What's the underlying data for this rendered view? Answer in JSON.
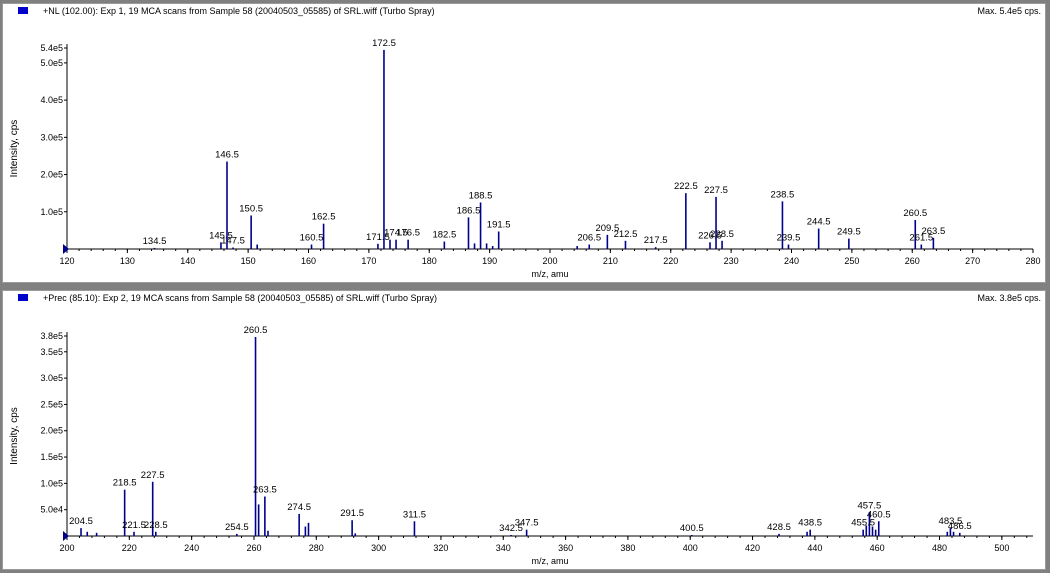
{
  "panels": [
    {
      "header": {
        "title": "+NL (102.00): Exp 1, 19 MCA scans from Sample 58 (20040503_05585) of SRL.wiff (Turbo Spray)",
        "max": "Max. 5.4e5 cps."
      }
    },
    {
      "header": {
        "title": "+Prec (85.10): Exp 2, 19 MCA scans from Sample 58 (20040503_05585) of SRL.wiff (Turbo Spray)",
        "max": "Max. 3.8e5 cps."
      }
    }
  ],
  "colors": {
    "peaks": "#00008b",
    "marker": "#00008b",
    "swatch": "#0000cc"
  },
  "chart_data": [
    {
      "type": "bar",
      "xlabel": "m/z, amu",
      "ylabel": "Intensity, cps",
      "xlim": [
        120,
        280
      ],
      "ylim": [
        0,
        540000
      ],
      "xticks": [
        120,
        130,
        140,
        150,
        160,
        170,
        180,
        190,
        200,
        210,
        220,
        230,
        240,
        250,
        260,
        270,
        280
      ],
      "yticks": [
        {
          "value": 100000,
          "label": "1.0e5"
        },
        {
          "value": 200000,
          "label": "2.0e5"
        },
        {
          "value": 300000,
          "label": "3.0e5"
        },
        {
          "value": 400000,
          "label": "4.0e5"
        },
        {
          "value": 500000,
          "label": "5.0e5"
        },
        {
          "value": 540000,
          "label": "5.4e5"
        }
      ],
      "peaks": [
        {
          "x": 134.5,
          "y": 3000,
          "label": "134.5"
        },
        {
          "x": 145.5,
          "y": 18000,
          "label": "145.5"
        },
        {
          "x": 146.5,
          "y": 235000,
          "label": "146.5"
        },
        {
          "x": 147.5,
          "y": 4000,
          "label": "147.5"
        },
        {
          "x": 150.5,
          "y": 90000,
          "label": "150.5"
        },
        {
          "x": 151.5,
          "y": 12000
        },
        {
          "x": 160.5,
          "y": 12000,
          "label": "160.5"
        },
        {
          "x": 162.5,
          "y": 68000,
          "label": "162.5"
        },
        {
          "x": 171.5,
          "y": 14000,
          "label": "171.5"
        },
        {
          "x": 172.5,
          "y": 535000,
          "label": "172.5"
        },
        {
          "x": 173.5,
          "y": 25000
        },
        {
          "x": 174.5,
          "y": 25000,
          "label": "174.5"
        },
        {
          "x": 176.5,
          "y": 25000,
          "label": "176.5"
        },
        {
          "x": 182.5,
          "y": 20000,
          "label": "182.5"
        },
        {
          "x": 186.5,
          "y": 85000,
          "label": "186.5"
        },
        {
          "x": 187.5,
          "y": 15000
        },
        {
          "x": 188.5,
          "y": 125000,
          "label": "188.5"
        },
        {
          "x": 189.5,
          "y": 15000
        },
        {
          "x": 190.5,
          "y": 8000
        },
        {
          "x": 191.5,
          "y": 47000,
          "label": "191.5"
        },
        {
          "x": 204.5,
          "y": 8000
        },
        {
          "x": 206.5,
          "y": 12000,
          "label": "206.5"
        },
        {
          "x": 209.5,
          "y": 38000,
          "label": "209.5"
        },
        {
          "x": 212.5,
          "y": 22000,
          "label": "212.5"
        },
        {
          "x": 217.5,
          "y": 5000,
          "label": "217.5"
        },
        {
          "x": 222.5,
          "y": 150000,
          "label": "222.5"
        },
        {
          "x": 226.5,
          "y": 18000,
          "label": "226.5"
        },
        {
          "x": 227.5,
          "y": 140000,
          "label": "227.5"
        },
        {
          "x": 228.5,
          "y": 22000,
          "label": "228.5"
        },
        {
          "x": 238.5,
          "y": 128000,
          "label": "238.5"
        },
        {
          "x": 239.5,
          "y": 12000,
          "label": "239.5"
        },
        {
          "x": 244.5,
          "y": 55000,
          "label": "244.5"
        },
        {
          "x": 249.5,
          "y": 28000,
          "label": "249.5"
        },
        {
          "x": 260.5,
          "y": 78000,
          "label": "260.5"
        },
        {
          "x": 261.5,
          "y": 12000,
          "label": "261.5"
        },
        {
          "x": 263.5,
          "y": 30000,
          "label": "263.5"
        }
      ]
    },
    {
      "type": "bar",
      "xlabel": "m/z, amu",
      "ylabel": "Intensity, cps",
      "xlim": [
        200,
        510
      ],
      "ylim": [
        0,
        380000
      ],
      "xticks": [
        200,
        220,
        240,
        260,
        280,
        300,
        320,
        340,
        360,
        380,
        400,
        420,
        440,
        460,
        480,
        500
      ],
      "yticks": [
        {
          "value": 50000,
          "label": "5.0e4"
        },
        {
          "value": 100000,
          "label": "1.0e5"
        },
        {
          "value": 150000,
          "label": "1.5e5"
        },
        {
          "value": 200000,
          "label": "2.0e5"
        },
        {
          "value": 250000,
          "label": "2.5e5"
        },
        {
          "value": 300000,
          "label": "3.0e5"
        },
        {
          "value": 350000,
          "label": "3.5e5"
        },
        {
          "value": 380000,
          "label": "3.8e5"
        }
      ],
      "peaks": [
        {
          "x": 204.5,
          "y": 15000,
          "label": "204.5"
        },
        {
          "x": 206.5,
          "y": 8000
        },
        {
          "x": 209.5,
          "y": 6000
        },
        {
          "x": 218.5,
          "y": 88000,
          "label": "218.5"
        },
        {
          "x": 221.5,
          "y": 8000,
          "label": "221.5"
        },
        {
          "x": 227.5,
          "y": 103000,
          "label": "227.5"
        },
        {
          "x": 228.5,
          "y": 8000,
          "label": "228.5"
        },
        {
          "x": 254.5,
          "y": 4000,
          "label": "254.5"
        },
        {
          "x": 260.5,
          "y": 378000,
          "label": "260.5"
        },
        {
          "x": 261.5,
          "y": 60000
        },
        {
          "x": 263.5,
          "y": 75000,
          "label": "263.5"
        },
        {
          "x": 264.5,
          "y": 10000
        },
        {
          "x": 274.5,
          "y": 42000,
          "label": "274.5"
        },
        {
          "x": 276.5,
          "y": 18000
        },
        {
          "x": 277.5,
          "y": 25000
        },
        {
          "x": 291.5,
          "y": 30000,
          "label": "291.5"
        },
        {
          "x": 292.5,
          "y": 5000
        },
        {
          "x": 311.5,
          "y": 28000,
          "label": "311.5"
        },
        {
          "x": 342.5,
          "y": 2000,
          "label": "342.5"
        },
        {
          "x": 347.5,
          "y": 12000,
          "label": "347.5"
        },
        {
          "x": 400.5,
          "y": 2000,
          "label": "400.5"
        },
        {
          "x": 428.5,
          "y": 4000,
          "label": "428.5"
        },
        {
          "x": 437.5,
          "y": 8000
        },
        {
          "x": 438.5,
          "y": 12000,
          "label": "438.5"
        },
        {
          "x": 455.5,
          "y": 12000,
          "label": "455.5"
        },
        {
          "x": 456.5,
          "y": 20000
        },
        {
          "x": 457.5,
          "y": 45000,
          "label": "457.5"
        },
        {
          "x": 458.5,
          "y": 18000
        },
        {
          "x": 459.5,
          "y": 12000
        },
        {
          "x": 460.5,
          "y": 28000,
          "label": "460.5"
        },
        {
          "x": 482.5,
          "y": 8000
        },
        {
          "x": 483.5,
          "y": 15000,
          "label": "483.5"
        },
        {
          "x": 484.5,
          "y": 8000
        },
        {
          "x": 486.5,
          "y": 6000,
          "label": "486.5"
        }
      ]
    }
  ]
}
